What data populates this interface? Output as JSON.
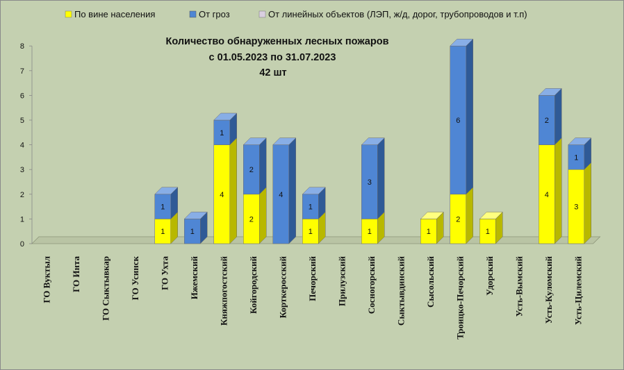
{
  "chart_data": {
    "type": "bar",
    "stacked": true,
    "three_d": true,
    "title_lines": [
      "Количество обнаруженных лесных пожаров",
      "с 01.05.2023  по  31.07.2023",
      "42 шт"
    ],
    "categories": [
      "ГО Вуктыл",
      "ГО Инта",
      "ГО Сыктывкар",
      "ГО Усинск",
      "ГО Ухта",
      "Ижемский",
      "Княжпогостский",
      "Койгородский",
      "Корткеросский",
      "Печорский",
      "Прилузский",
      "Сосногорский",
      "Сыктывдинский",
      "Сысольский",
      "Троицко-Печорский",
      "Удорский",
      "Усть-Вымский",
      "Усть-Куломский",
      "Усть-Цилемский"
    ],
    "series": [
      {
        "name": "По вине населения",
        "color": "#ffff00",
        "side_color": "#b8b800",
        "top_color": "#ffff80",
        "values": [
          0,
          0,
          0,
          0,
          1,
          0,
          4,
          2,
          0,
          1,
          0,
          1,
          0,
          1,
          2,
          1,
          0,
          4,
          3
        ]
      },
      {
        "name": "От гроз",
        "color": "#4f86d4",
        "side_color": "#2f5a96",
        "top_color": "#88aee6",
        "values": [
          0,
          0,
          0,
          0,
          1,
          1,
          1,
          2,
          4,
          1,
          0,
          3,
          0,
          0,
          6,
          0,
          0,
          2,
          1
        ]
      },
      {
        "name": "От линейных объектов (ЛЭП, ж/д, дорог, трубопроводов  и т.п)",
        "color": "#d9cfe0",
        "side_color": "#a89cb2",
        "top_color": "#ece6f2",
        "values": [
          0,
          0,
          0,
          0,
          0,
          0,
          0,
          0,
          0,
          0,
          0,
          0,
          0,
          0,
          0,
          0,
          0,
          0,
          0
        ]
      }
    ],
    "yticks": [
      "0",
      "1",
      "2",
      "3",
      "4",
      "5",
      "6",
      "7",
      "8"
    ],
    "ylim": [
      0,
      8
    ],
    "grid": false,
    "legend_position": "top"
  }
}
